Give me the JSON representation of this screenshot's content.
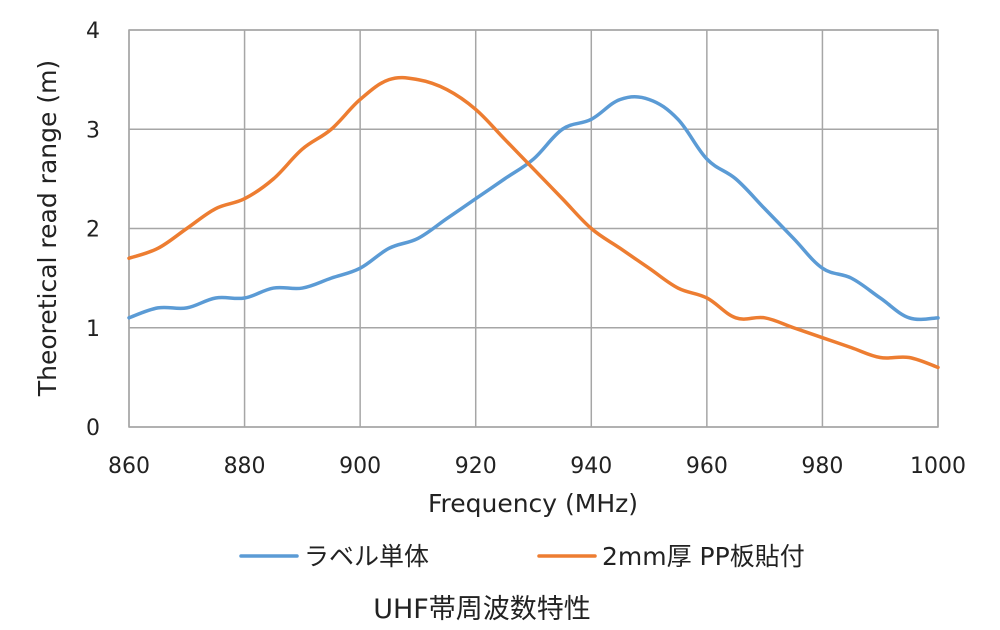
{
  "chart_data": {
    "type": "line",
    "title": "",
    "xlabel": "Frequency (MHz)",
    "ylabel": "Theoretical read range (m)",
    "xlim": [
      860,
      1000
    ],
    "ylim": [
      0,
      4
    ],
    "xticks": [
      "860",
      "880",
      "900",
      "920",
      "940",
      "960",
      "980",
      "1000"
    ],
    "yticks": [
      "0",
      "1",
      "2",
      "3",
      "4"
    ],
    "grid": true,
    "legend_position": "bottom",
    "x": [
      860,
      865,
      870,
      875,
      880,
      885,
      890,
      895,
      900,
      905,
      910,
      915,
      920,
      925,
      930,
      935,
      940,
      945,
      950,
      955,
      960,
      965,
      970,
      975,
      980,
      985,
      990,
      995,
      1000
    ],
    "series": [
      {
        "name": "ラベル単体",
        "color": "#5b9bd5",
        "values": [
          1.1,
          1.2,
          1.2,
          1.3,
          1.3,
          1.4,
          1.4,
          1.5,
          1.6,
          1.8,
          1.9,
          2.1,
          2.3,
          2.5,
          2.7,
          3.0,
          3.1,
          3.3,
          3.3,
          3.1,
          2.7,
          2.5,
          2.2,
          1.9,
          1.6,
          1.5,
          1.3,
          1.1,
          1.1
        ]
      },
      {
        "name": "2mm厚 PP板貼付",
        "color": "#ed7d31",
        "values": [
          1.7,
          1.8,
          2.0,
          2.2,
          2.3,
          2.5,
          2.8,
          3.0,
          3.3,
          3.5,
          3.5,
          3.4,
          3.2,
          2.9,
          2.6,
          2.3,
          2.0,
          1.8,
          1.6,
          1.4,
          1.3,
          1.1,
          1.1,
          1.0,
          0.9,
          0.8,
          0.7,
          0.7,
          0.6
        ]
      }
    ],
    "caption": "UHF帯周波数特性"
  }
}
